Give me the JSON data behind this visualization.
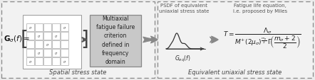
{
  "bg_color": "#ebebeb",
  "box_face": "#f2f2f2",
  "gray_box_face": "#cccccc",
  "text_color": "#333333",
  "left_label": "Spatial stress state",
  "right_label": "Equivalent uniaxial stress state",
  "center_text": "Multiaxial\nfatigue failure\ncriterion\ndefined in\nfrequency\ndomain",
  "psdf_label": "PSDF of equivalent\nuniaxial stress state",
  "fatigue_label": "Fatigue life equation,\ni.e. proposed by Miles",
  "G_sigma": "$\\mathbf{G}_{\\sigma}(f)=$",
  "G_eq": "$G_{eq}(f)$"
}
